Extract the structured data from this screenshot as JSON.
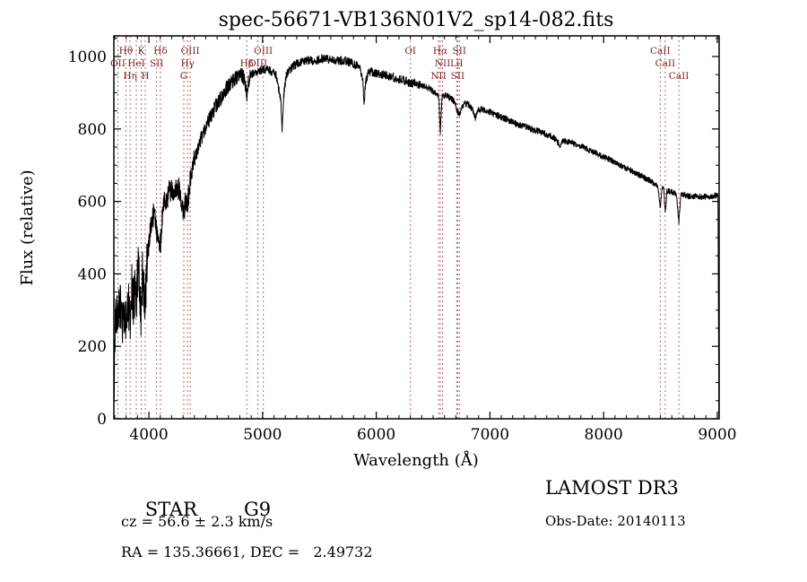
{
  "chart_data": {
    "type": "line",
    "title": "spec-56671-VB136N01V2_sp14-082.fits",
    "xlabel": "Wavelength (Å)",
    "ylabel": "Flux (relative)",
    "xlim": [
      3692,
      9016
    ],
    "ylim": [
      0,
      1057
    ],
    "x_ticks": [
      4000,
      5000,
      6000,
      7000,
      8000,
      9000
    ],
    "y_ticks": [
      0,
      200,
      400,
      600,
      800,
      1000
    ],
    "x_minor_step": 100,
    "y_minor_step": 50,
    "grid": false,
    "legend": "none",
    "line_color": "#000000",
    "marker_color": "#b05555",
    "marker_label_color": "#7a1f1f",
    "sample_step": 2,
    "noise_seed": 11,
    "noise_regions": [
      [
        3692,
        3990,
        68
      ],
      [
        3990,
        4400,
        34
      ],
      [
        4400,
        4900,
        21
      ],
      [
        4900,
        6400,
        12
      ],
      [
        6400,
        7600,
        9
      ],
      [
        7600,
        9016,
        8
      ]
    ],
    "envelope": [
      [
        3692,
        60
      ],
      [
        3700,
        230
      ],
      [
        3715,
        300
      ],
      [
        3727,
        250
      ],
      [
        3740,
        320
      ],
      [
        3755,
        295
      ],
      [
        3770,
        260
      ],
      [
        3785,
        310
      ],
      [
        3798,
        270
      ],
      [
        3812,
        330
      ],
      [
        3825,
        300
      ],
      [
        3835,
        255
      ],
      [
        3848,
        370
      ],
      [
        3862,
        320
      ],
      [
        3876,
        345
      ],
      [
        3889,
        300
      ],
      [
        3902,
        420
      ],
      [
        3916,
        380
      ],
      [
        3926,
        330
      ],
      [
        3933,
        265
      ],
      [
        3944,
        400
      ],
      [
        3956,
        340
      ],
      [
        3968,
        300
      ],
      [
        3980,
        425
      ],
      [
        4000,
        470
      ],
      [
        4020,
        545
      ],
      [
        4045,
        565
      ],
      [
        4068,
        520
      ],
      [
        4085,
        505
      ],
      [
        4101,
        480
      ],
      [
        4118,
        560
      ],
      [
        4140,
        600
      ],
      [
        4170,
        620
      ],
      [
        4200,
        640
      ],
      [
        4232,
        632
      ],
      [
        4262,
        640
      ],
      [
        4290,
        592
      ],
      [
        4307,
        560
      ],
      [
        4322,
        603
      ],
      [
        4340,
        580
      ],
      [
        4358,
        650
      ],
      [
        4380,
        692
      ],
      [
        4410,
        722
      ],
      [
        4440,
        752
      ],
      [
        4470,
        782
      ],
      [
        4500,
        806
      ],
      [
        4530,
        826
      ],
      [
        4562,
        846
      ],
      [
        4594,
        866
      ],
      [
        4626,
        882
      ],
      [
        4658,
        900
      ],
      [
        4690,
        916
      ],
      [
        4722,
        928
      ],
      [
        4754,
        938
      ],
      [
        4786,
        948
      ],
      [
        4818,
        950
      ],
      [
        4840,
        938
      ],
      [
        4861,
        895
      ],
      [
        4878,
        936
      ],
      [
        4900,
        950
      ],
      [
        4930,
        956
      ],
      [
        4960,
        960
      ],
      [
        5000,
        964
      ],
      [
        5040,
        964
      ],
      [
        5080,
        958
      ],
      [
        5120,
        948
      ],
      [
        5160,
        880
      ],
      [
        5172,
        800
      ],
      [
        5186,
        890
      ],
      [
        5205,
        945
      ],
      [
        5235,
        962
      ],
      [
        5265,
        972
      ],
      [
        5300,
        980
      ],
      [
        5340,
        986
      ],
      [
        5380,
        988
      ],
      [
        5420,
        990
      ],
      [
        5460,
        988
      ],
      [
        5500,
        992
      ],
      [
        5540,
        995
      ],
      [
        5580,
        992
      ],
      [
        5620,
        990
      ],
      [
        5660,
        987
      ],
      [
        5700,
        990
      ],
      [
        5740,
        987
      ],
      [
        5780,
        983
      ],
      [
        5820,
        977
      ],
      [
        5858,
        966
      ],
      [
        5883,
        930
      ],
      [
        5893,
        868
      ],
      [
        5906,
        930
      ],
      [
        5932,
        957
      ],
      [
        5970,
        957
      ],
      [
        6010,
        954
      ],
      [
        6050,
        951
      ],
      [
        6090,
        948
      ],
      [
        6130,
        945
      ],
      [
        6170,
        941
      ],
      [
        6210,
        937
      ],
      [
        6250,
        933
      ],
      [
        6290,
        928
      ],
      [
        6330,
        927
      ],
      [
        6370,
        923
      ],
      [
        6410,
        919
      ],
      [
        6450,
        914
      ],
      [
        6490,
        907
      ],
      [
        6530,
        898
      ],
      [
        6550,
        888
      ],
      [
        6563,
        788
      ],
      [
        6578,
        888
      ],
      [
        6612,
        893
      ],
      [
        6650,
        886
      ],
      [
        6688,
        876
      ],
      [
        6706,
        856
      ],
      [
        6719,
        844
      ],
      [
        6733,
        840
      ],
      [
        6752,
        864
      ],
      [
        6784,
        870
      ],
      [
        6820,
        866
      ],
      [
        6858,
        846
      ],
      [
        6874,
        830
      ],
      [
        6892,
        851
      ],
      [
        6924,
        854
      ],
      [
        6956,
        851
      ],
      [
        6992,
        847
      ],
      [
        7030,
        842
      ],
      [
        7070,
        837
      ],
      [
        7110,
        831
      ],
      [
        7150,
        826
      ],
      [
        7192,
        819
      ],
      [
        7234,
        814
      ],
      [
        7276,
        809
      ],
      [
        7318,
        805
      ],
      [
        7360,
        800
      ],
      [
        7402,
        796
      ],
      [
        7444,
        791
      ],
      [
        7486,
        787
      ],
      [
        7528,
        781
      ],
      [
        7570,
        774
      ],
      [
        7600,
        763
      ],
      [
        7618,
        754
      ],
      [
        7642,
        767
      ],
      [
        7684,
        765
      ],
      [
        7726,
        761
      ],
      [
        7768,
        756
      ],
      [
        7810,
        751
      ],
      [
        7852,
        745
      ],
      [
        7894,
        739
      ],
      [
        7936,
        733
      ],
      [
        7978,
        726
      ],
      [
        8020,
        720
      ],
      [
        8062,
        714
      ],
      [
        8104,
        707
      ],
      [
        8146,
        700
      ],
      [
        8188,
        694
      ],
      [
        8230,
        687
      ],
      [
        8272,
        680
      ],
      [
        8314,
        673
      ],
      [
        8356,
        666
      ],
      [
        8398,
        659
      ],
      [
        8440,
        651
      ],
      [
        8478,
        641
      ],
      [
        8498,
        585
      ],
      [
        8514,
        637
      ],
      [
        8530,
        631
      ],
      [
        8542,
        566
      ],
      [
        8557,
        629
      ],
      [
        8582,
        627
      ],
      [
        8612,
        625
      ],
      [
        8640,
        621
      ],
      [
        8662,
        542
      ],
      [
        8678,
        617
      ],
      [
        8704,
        619
      ],
      [
        8744,
        615
      ],
      [
        8784,
        613
      ],
      [
        8824,
        615
      ],
      [
        8864,
        612
      ],
      [
        8904,
        614
      ],
      [
        8944,
        612
      ],
      [
        8980,
        616
      ],
      [
        9000,
        617
      ],
      [
        9006,
        608
      ],
      [
        9010,
        320
      ],
      [
        9014,
        5
      ]
    ],
    "spectral_lines": [
      {
        "label": "OII",
        "wl": 3727,
        "row": 2
      },
      {
        "label": "Hθ",
        "wl": 3798,
        "row": 1
      },
      {
        "label": "Hη",
        "wl": 3835,
        "row": 3
      },
      {
        "label": "HeI",
        "wl": 3889,
        "row": 2
      },
      {
        "label": "K",
        "wl": 3933,
        "row": 1
      },
      {
        "label": "H",
        "wl": 3968,
        "row": 3
      },
      {
        "label": "SII",
        "wl": 4068,
        "row": 2
      },
      {
        "label": "Hδ",
        "wl": 4101,
        "row": 1
      },
      {
        "label": "G",
        "wl": 4307,
        "row": 3
      },
      {
        "label": "Hγ",
        "wl": 4340,
        "row": 2
      },
      {
        "label": "OIII",
        "wl": 4363,
        "row": 1
      },
      {
        "label": "Hβ",
        "wl": 4861,
        "row": 2
      },
      {
        "label": "OIII",
        "wl": 4959,
        "row": 2
      },
      {
        "label": "OIII",
        "wl": 5007,
        "row": 1
      },
      {
        "label": "OI",
        "wl": 6300,
        "row": 1
      },
      {
        "label": "NII",
        "wl": 6548,
        "row": 3
      },
      {
        "label": "Hα",
        "wl": 6563,
        "row": 1
      },
      {
        "label": "NII",
        "wl": 6583,
        "row": 2
      },
      {
        "label": "LiI",
        "wl": 6707,
        "row": 2
      },
      {
        "label": "SII",
        "wl": 6716,
        "row": 3
      },
      {
        "label": "SII",
        "wl": 6731,
        "row": 1
      },
      {
        "label": "CaII",
        "wl": 8498,
        "row": 1
      },
      {
        "label": "CaII",
        "wl": 8542,
        "row": 2
      },
      {
        "label": "CaII",
        "wl": 8662,
        "row": 3
      }
    ]
  },
  "footer": {
    "class_label": "STAR",
    "subclass": "G9",
    "cz": "cz = 56.6 ± 2.3 km/s",
    "radec": "RA = 135.36661, DEC =   2.49732",
    "survey": "LAMOST DR3",
    "obs_date": "Obs-Date: 20140113"
  }
}
